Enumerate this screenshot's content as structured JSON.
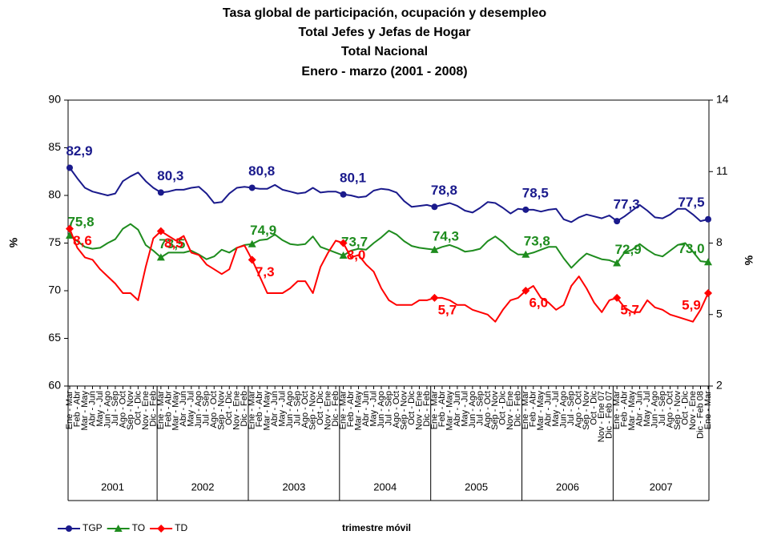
{
  "chart_data": {
    "type": "line",
    "title": "Tasa global de participación, ocupación y desempleo",
    "subtitle_lines": [
      "Total Jefes y Jefas de Hogar",
      "Total Nacional",
      "Enero - marzo (2001 - 2008)"
    ],
    "x_label": "trimestre móvil",
    "y_label": "%",
    "y2_label": "%",
    "ylim": [
      60,
      90
    ],
    "yticks": [
      60,
      65,
      70,
      75,
      80,
      85,
      90
    ],
    "y2lim": [
      2,
      14
    ],
    "y2ticks": [
      2,
      5,
      8,
      11,
      14
    ],
    "grid": false,
    "legend": "bottom-left",
    "year_groups": [
      "2001",
      "2002",
      "2003",
      "2004",
      "2005",
      "2006",
      "2007"
    ],
    "categories": [
      "Ene - Mar",
      "Feb - Abr",
      "Mar - May",
      "Abr - Jun",
      "May - Jul",
      "Jun - Ago",
      "Jul - Sep",
      "Ago - Oct",
      "Sep - Nov",
      "Oct - Dic",
      "Nov - Ene",
      "Dic - Feb",
      "Ene - Mar",
      "Feb - Abr",
      "Mar - May",
      "Abr - Jun",
      "May - Jul",
      "Jun - Ago",
      "Jul - Sep",
      "Ago - Oct",
      "Sep - Nov",
      "Oct - Dic",
      "Nov - Ene",
      "Dic - Feb",
      "Ene - Mar",
      "Feb - Abr",
      "Mar - May",
      "Abr - Jun",
      "May - Jul",
      "Jun - Ago",
      "Jul - Sep",
      "Ago - Oct",
      "Sep - Nov",
      "Oct - Dic",
      "Nov - Ene",
      "Dic - Feb",
      "Ene - Mar",
      "Feb - Abr",
      "Mar - May",
      "Abr - Jun",
      "May - Jul",
      "Jun - Ago",
      "Jul - Sep",
      "Ago - Oct",
      "Sep - Nov",
      "Oct - Dic",
      "Nov - Ene",
      "Dic - Feb",
      "Ene - Mar",
      "Feb - Abr",
      "Mar - May",
      "Abr - Jun",
      "May - Jul",
      "Jun - Ago",
      "Jul - Sep",
      "Ago - Oct",
      "Sep - Nov",
      "Oct - Dic",
      "Nov - Ene",
      "Dic - Feb",
      "Ene - Mar",
      "Feb - Abr",
      "Mar - May",
      "Abr - Jun",
      "May - Jul",
      "Jun - Ago",
      "Jul - Sep",
      "Ago - Oct",
      "Sep - Nov",
      "Oct - Dic",
      "Nov - Ene 07",
      "Dic - Feb 07",
      "Ene - Mar",
      "Feb - Abr",
      "Mar - May",
      "Abr - Jun",
      "May - Jul",
      "Jun - Ago",
      "Jul - Sep",
      "Ago - Oct",
      "Sep - Nov",
      "Oct - Dic",
      "Nov - Ene",
      "Dic - Feb 08",
      "Ene - Mar"
    ],
    "series": [
      {
        "name": "TGP",
        "color": "#1a1a8c",
        "marker": "circle",
        "values": [
          82.9,
          81.8,
          80.8,
          80.4,
          80.2,
          80.0,
          80.2,
          81.5,
          82.0,
          82.4,
          81.5,
          80.8,
          80.3,
          80.4,
          80.6,
          80.6,
          80.8,
          80.9,
          80.2,
          79.2,
          79.3,
          80.2,
          80.8,
          80.9,
          80.8,
          80.7,
          80.7,
          81.1,
          80.6,
          80.4,
          80.2,
          80.3,
          80.8,
          80.3,
          80.4,
          80.4,
          80.1,
          80.0,
          79.8,
          79.9,
          80.5,
          80.7,
          80.6,
          80.3,
          79.4,
          78.8,
          78.9,
          79.0,
          78.8,
          79.0,
          79.2,
          78.9,
          78.4,
          78.2,
          78.7,
          79.3,
          79.2,
          78.7,
          78.1,
          78.6,
          78.5,
          78.5,
          78.3,
          78.5,
          78.6,
          77.5,
          77.2,
          77.7,
          78.0,
          77.8,
          77.6,
          77.9,
          77.3,
          77.8,
          78.4,
          79.0,
          78.4,
          77.7,
          77.6,
          78.0,
          78.6,
          78.6,
          78.0,
          77.3,
          77.5
        ],
        "value_labels": [
          "82,9",
          null,
          null,
          null,
          null,
          null,
          null,
          null,
          null,
          null,
          null,
          null,
          "80,3",
          null,
          null,
          null,
          null,
          null,
          null,
          null,
          null,
          null,
          null,
          null,
          "80,8",
          null,
          null,
          null,
          null,
          null,
          null,
          null,
          null,
          null,
          null,
          null,
          "80,1",
          null,
          null,
          null,
          null,
          null,
          null,
          null,
          null,
          null,
          null,
          null,
          "78,8",
          null,
          null,
          null,
          null,
          null,
          null,
          null,
          null,
          null,
          null,
          null,
          "78,5",
          null,
          null,
          null,
          null,
          null,
          null,
          null,
          null,
          null,
          null,
          null,
          "77,3",
          null,
          null,
          null,
          null,
          null,
          null,
          null,
          null,
          null,
          null,
          null,
          "77,5"
        ]
      },
      {
        "name": "TO",
        "color": "#1e8c1e",
        "marker": "triangle",
        "values": [
          75.8,
          75.2,
          74.6,
          74.4,
          74.5,
          75.0,
          75.4,
          76.5,
          77.0,
          76.4,
          74.8,
          74.2,
          73.5,
          74.0,
          74.0,
          74.0,
          74.2,
          73.8,
          73.3,
          73.6,
          74.3,
          74.0,
          74.5,
          74.8,
          74.9,
          75.3,
          75.4,
          75.9,
          75.3,
          74.9,
          74.8,
          74.9,
          75.7,
          74.6,
          74.3,
          74.0,
          73.7,
          74.2,
          74.4,
          74.3,
          75.0,
          75.6,
          76.3,
          75.9,
          75.2,
          74.7,
          74.5,
          74.4,
          74.3,
          74.6,
          74.8,
          74.5,
          74.1,
          74.2,
          74.4,
          75.2,
          75.7,
          75.1,
          74.3,
          73.8,
          73.8,
          74.0,
          74.3,
          74.6,
          74.6,
          73.4,
          72.4,
          73.2,
          73.9,
          73.6,
          73.3,
          73.2,
          72.9,
          74.0,
          74.3,
          74.9,
          74.3,
          73.8,
          73.6,
          74.2,
          74.8,
          75.0,
          74.1,
          73.1,
          73.0
        ],
        "value_labels": [
          "75,8",
          null,
          null,
          null,
          null,
          null,
          null,
          null,
          null,
          null,
          null,
          null,
          "73,5",
          null,
          null,
          null,
          null,
          null,
          null,
          null,
          null,
          null,
          null,
          null,
          "74,9",
          null,
          null,
          null,
          null,
          null,
          null,
          null,
          null,
          null,
          null,
          null,
          "73,7",
          null,
          null,
          null,
          null,
          null,
          null,
          null,
          null,
          null,
          null,
          null,
          "74,3",
          null,
          null,
          null,
          null,
          null,
          null,
          null,
          null,
          null,
          null,
          null,
          "73,8",
          null,
          null,
          null,
          null,
          null,
          null,
          null,
          null,
          null,
          null,
          null,
          "72,9",
          null,
          null,
          null,
          null,
          null,
          null,
          null,
          null,
          null,
          null,
          null,
          "73,0"
        ]
      },
      {
        "name": "TD",
        "color": "#ff0000",
        "marker": "diamond",
        "axis": "y2",
        "values": [
          8.6,
          7.8,
          7.4,
          7.3,
          6.9,
          6.6,
          6.3,
          5.9,
          5.9,
          5.6,
          7.0,
          8.2,
          8.5,
          8.3,
          8.1,
          8.3,
          7.6,
          7.5,
          7.1,
          6.9,
          6.7,
          6.9,
          7.8,
          7.9,
          7.3,
          6.6,
          5.9,
          5.9,
          5.9,
          6.1,
          6.4,
          6.4,
          5.9,
          7.0,
          7.6,
          8.1,
          8.0,
          7.4,
          7.5,
          7.1,
          6.8,
          6.1,
          5.6,
          5.4,
          5.4,
          5.4,
          5.6,
          5.6,
          5.7,
          5.7,
          5.6,
          5.4,
          5.4,
          5.2,
          5.1,
          5.0,
          4.7,
          5.2,
          5.6,
          5.7,
          6.0,
          6.2,
          5.7,
          5.5,
          5.2,
          5.4,
          6.2,
          6.6,
          6.1,
          5.5,
          5.1,
          5.6,
          5.7,
          5.3,
          5.1,
          5.1,
          5.6,
          5.3,
          5.2,
          5.0,
          4.9,
          4.8,
          4.7,
          5.2,
          5.9
        ],
        "value_labels": [
          "8,6",
          null,
          null,
          null,
          null,
          null,
          null,
          null,
          null,
          null,
          null,
          null,
          "8,5",
          null,
          null,
          null,
          null,
          null,
          null,
          null,
          null,
          null,
          null,
          null,
          "7,3",
          null,
          null,
          null,
          null,
          null,
          null,
          null,
          null,
          null,
          null,
          null,
          "8,0",
          null,
          null,
          null,
          null,
          null,
          null,
          null,
          null,
          null,
          null,
          null,
          "5,7",
          null,
          null,
          null,
          null,
          null,
          null,
          null,
          null,
          null,
          null,
          null,
          "6,0",
          null,
          null,
          null,
          null,
          null,
          null,
          null,
          null,
          null,
          null,
          null,
          "5,7",
          null,
          null,
          null,
          null,
          null,
          null,
          null,
          null,
          null,
          null,
          null,
          "5,9"
        ]
      }
    ]
  }
}
